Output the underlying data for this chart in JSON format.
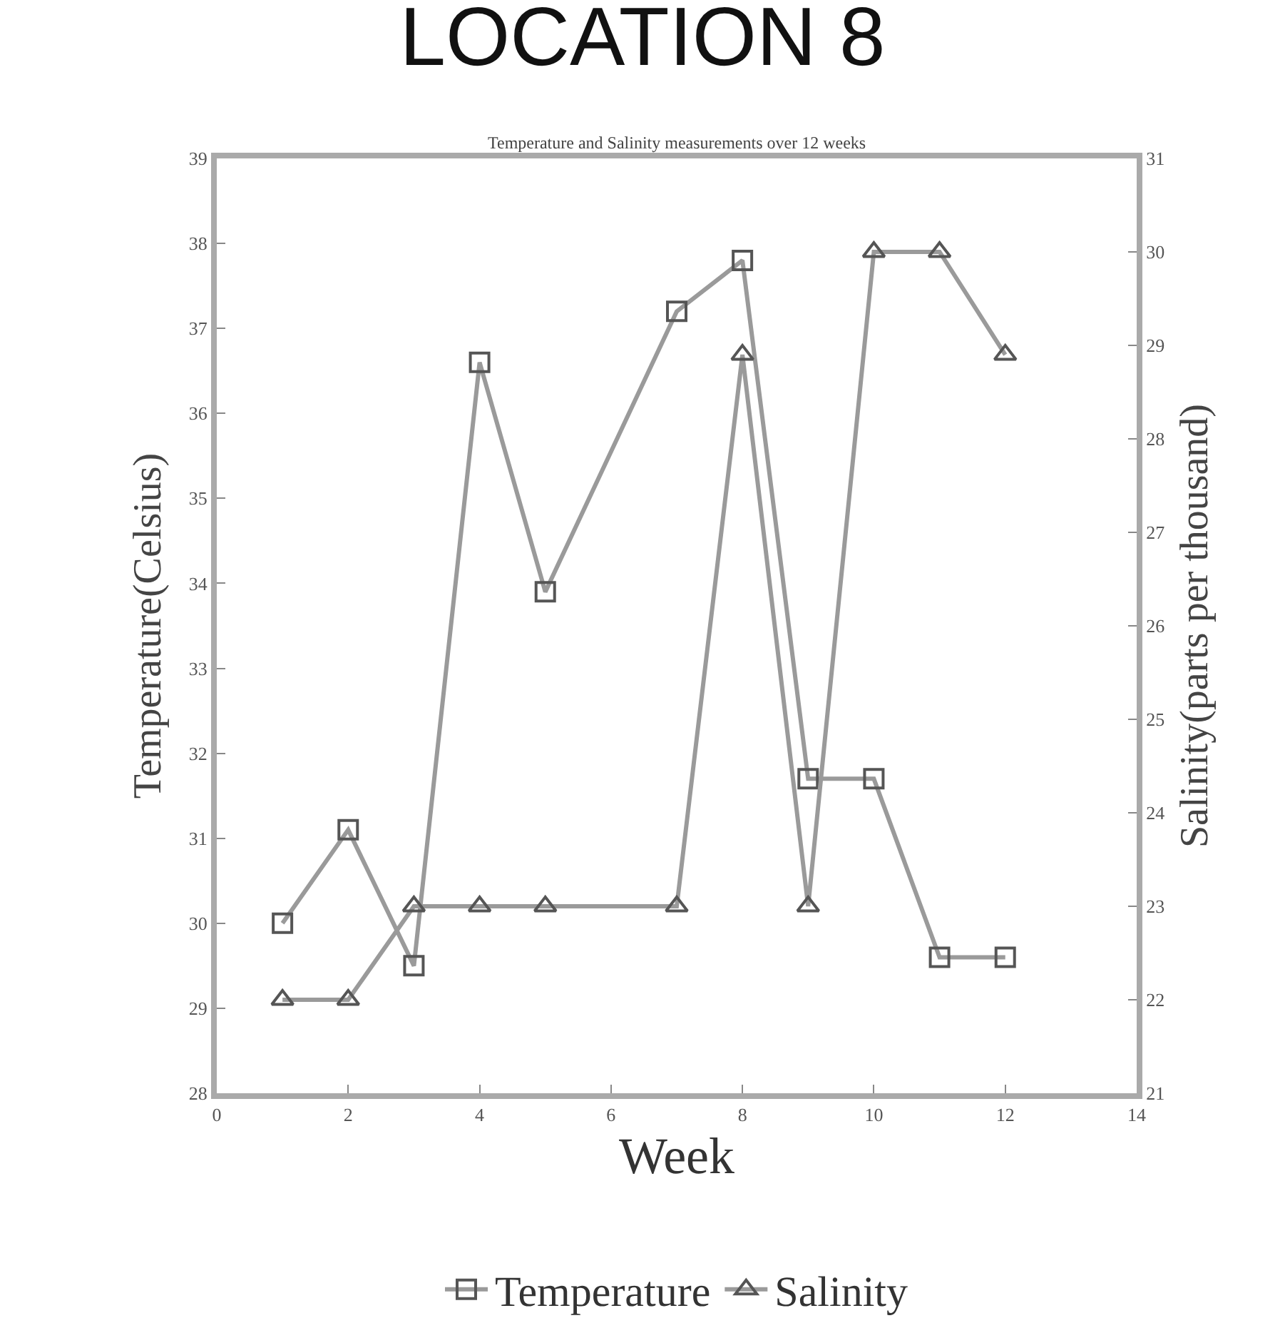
{
  "chart_data": {
    "type": "line",
    "title": "LOCATION 8",
    "subtitle": "Temperature and Salinity measurements over 12 weeks",
    "xlabel": "Week",
    "ylabel": "Temperature(Celsius)",
    "y2label": "Salinity(parts per thousand)",
    "x": [
      1,
      2,
      3,
      4,
      5,
      7,
      8,
      9,
      10,
      11,
      12
    ],
    "series": [
      {
        "name": "Temperature",
        "color": "#9a9a9a",
        "marker": "square",
        "values": [
          30.0,
          31.1,
          29.5,
          36.6,
          33.9,
          37.2,
          37.8,
          31.7,
          31.7,
          29.6,
          29.6
        ]
      },
      {
        "name": "Salinity",
        "color": "#9a9a9a",
        "marker": "triangle",
        "axis": "y2",
        "values": [
          22.0,
          22.0,
          23.0,
          23.0,
          23.0,
          23.0,
          28.9,
          23.0,
          30.0,
          30.0,
          28.9
        ]
      }
    ],
    "xlim": [
      0,
      14
    ],
    "xticks": [
      0,
      2,
      4,
      6,
      8,
      10,
      12,
      14
    ],
    "ylim": [
      28,
      39
    ],
    "yticks": [
      28,
      29,
      30,
      31,
      32,
      33,
      34,
      35,
      36,
      37,
      38,
      39
    ],
    "y2lim": [
      21,
      31
    ],
    "y2ticks": [
      21,
      22,
      23,
      24,
      25,
      26,
      27,
      28,
      29,
      30,
      31
    ],
    "grid": false,
    "legend": "bottom",
    "line_style": "solid"
  }
}
